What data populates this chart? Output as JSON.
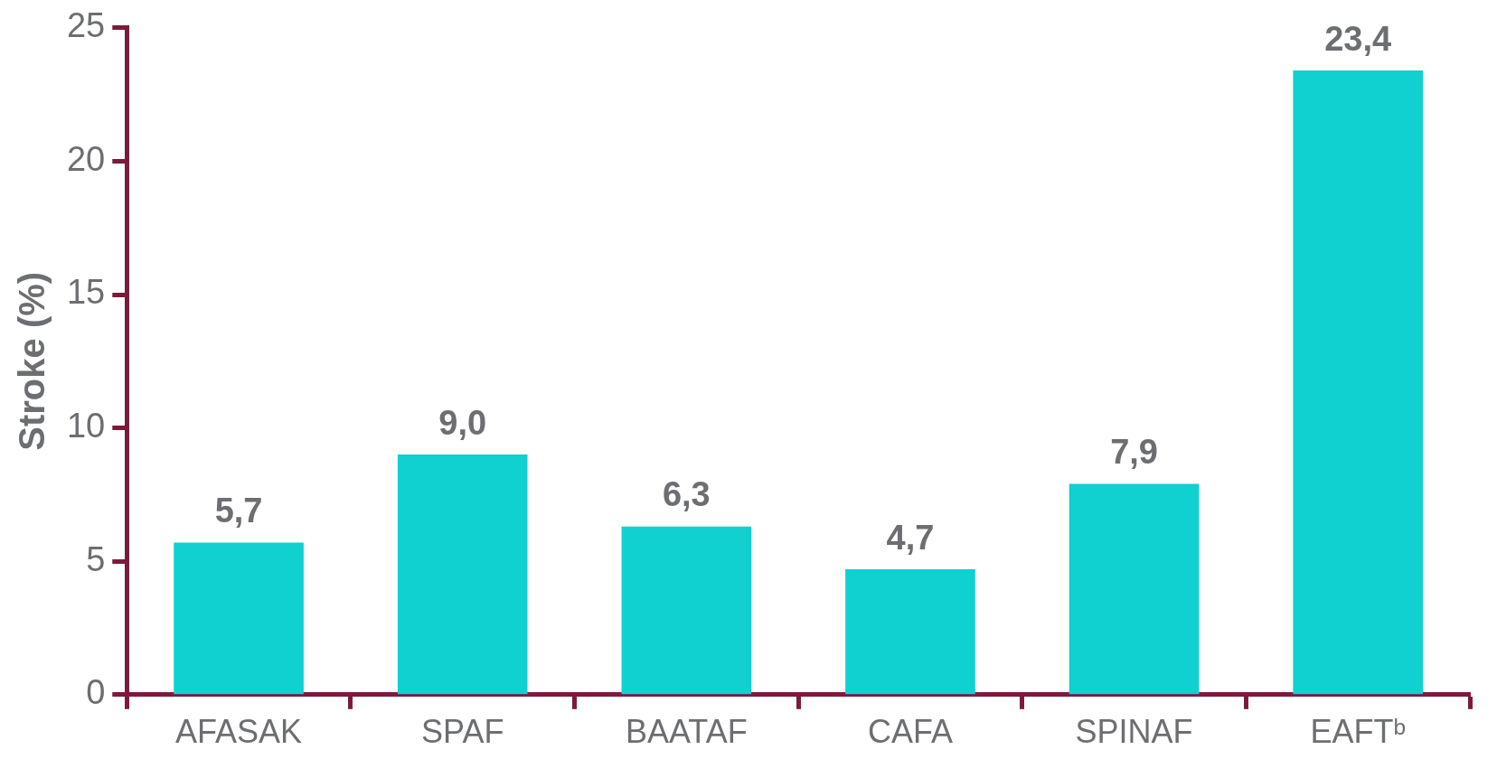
{
  "chart_data": {
    "type": "bar",
    "ylabel": "Stroke (%)",
    "categories": [
      "AFASAK",
      "SPAF",
      "BAATAF",
      "CAFA",
      "SPINAF",
      "EAFTᵇ"
    ],
    "values": [
      5.7,
      9.0,
      6.3,
      4.7,
      7.9,
      23.4
    ],
    "value_labels": [
      "5,7",
      "9,0",
      "6,3",
      "4,7",
      "7,9",
      "23,4"
    ],
    "color": "#10d0d0",
    "ylim": [
      0,
      25
    ],
    "yticks": [
      0,
      5,
      10,
      15,
      20,
      25
    ],
    "grid": false,
    "legend": false
  }
}
